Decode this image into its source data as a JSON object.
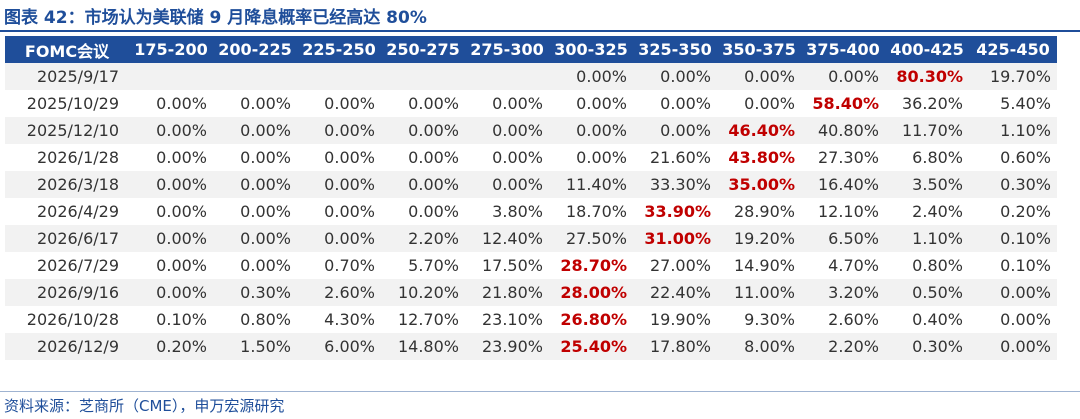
{
  "title": "图表 42：市场认为美联储 9 月降息概率已经高达 80%",
  "source": "资料来源：芝商所（CME），申万宏源研究",
  "table": {
    "headers": [
      "FOMC会议",
      "175-200",
      "200-225",
      "225-250",
      "250-275",
      "275-300",
      "300-325",
      "325-350",
      "350-375",
      "375-400",
      "400-425",
      "425-450"
    ],
    "rows": [
      {
        "date": "2025/9/17",
        "cells": [
          "",
          "",
          "",
          "",
          "",
          "0.00%",
          "0.00%",
          "0.00%",
          "0.00%",
          "80.30%",
          "19.70%"
        ],
        "highlight": 9
      },
      {
        "date": "2025/10/29",
        "cells": [
          "0.00%",
          "0.00%",
          "0.00%",
          "0.00%",
          "0.00%",
          "0.00%",
          "0.00%",
          "0.00%",
          "58.40%",
          "36.20%",
          "5.40%"
        ],
        "highlight": 8
      },
      {
        "date": "2025/12/10",
        "cells": [
          "0.00%",
          "0.00%",
          "0.00%",
          "0.00%",
          "0.00%",
          "0.00%",
          "0.00%",
          "46.40%",
          "40.80%",
          "11.70%",
          "1.10%"
        ],
        "highlight": 7
      },
      {
        "date": "2026/1/28",
        "cells": [
          "0.00%",
          "0.00%",
          "0.00%",
          "0.00%",
          "0.00%",
          "0.00%",
          "21.60%",
          "43.80%",
          "27.30%",
          "6.80%",
          "0.60%"
        ],
        "highlight": 7
      },
      {
        "date": "2026/3/18",
        "cells": [
          "0.00%",
          "0.00%",
          "0.00%",
          "0.00%",
          "0.00%",
          "11.40%",
          "33.30%",
          "35.00%",
          "16.40%",
          "3.50%",
          "0.30%"
        ],
        "highlight": 7
      },
      {
        "date": "2026/4/29",
        "cells": [
          "0.00%",
          "0.00%",
          "0.00%",
          "0.00%",
          "3.80%",
          "18.70%",
          "33.90%",
          "28.90%",
          "12.10%",
          "2.40%",
          "0.20%"
        ],
        "highlight": 6
      },
      {
        "date": "2026/6/17",
        "cells": [
          "0.00%",
          "0.00%",
          "0.00%",
          "2.20%",
          "12.40%",
          "27.50%",
          "31.00%",
          "19.20%",
          "6.50%",
          "1.10%",
          "0.10%"
        ],
        "highlight": 6
      },
      {
        "date": "2026/7/29",
        "cells": [
          "0.00%",
          "0.00%",
          "0.70%",
          "5.70%",
          "17.50%",
          "28.70%",
          "27.00%",
          "14.90%",
          "4.70%",
          "0.80%",
          "0.10%"
        ],
        "highlight": 5
      },
      {
        "date": "2026/9/16",
        "cells": [
          "0.00%",
          "0.30%",
          "2.60%",
          "10.20%",
          "21.80%",
          "28.00%",
          "22.40%",
          "11.00%",
          "3.20%",
          "0.50%",
          "0.00%"
        ],
        "highlight": 5
      },
      {
        "date": "2026/10/28",
        "cells": [
          "0.10%",
          "0.80%",
          "4.30%",
          "12.70%",
          "23.10%",
          "26.80%",
          "19.90%",
          "9.30%",
          "2.60%",
          "0.40%",
          "0.00%"
        ],
        "highlight": 5
      },
      {
        "date": "2026/12/9",
        "cells": [
          "0.20%",
          "1.50%",
          "6.00%",
          "14.80%",
          "23.90%",
          "25.40%",
          "17.80%",
          "8.00%",
          "2.20%",
          "0.30%",
          "0.00%"
        ],
        "highlight": 5
      }
    ]
  },
  "colors": {
    "brand": "#1f4e9a",
    "highlight": "#c00000",
    "stripe": "#f2f2f2"
  }
}
